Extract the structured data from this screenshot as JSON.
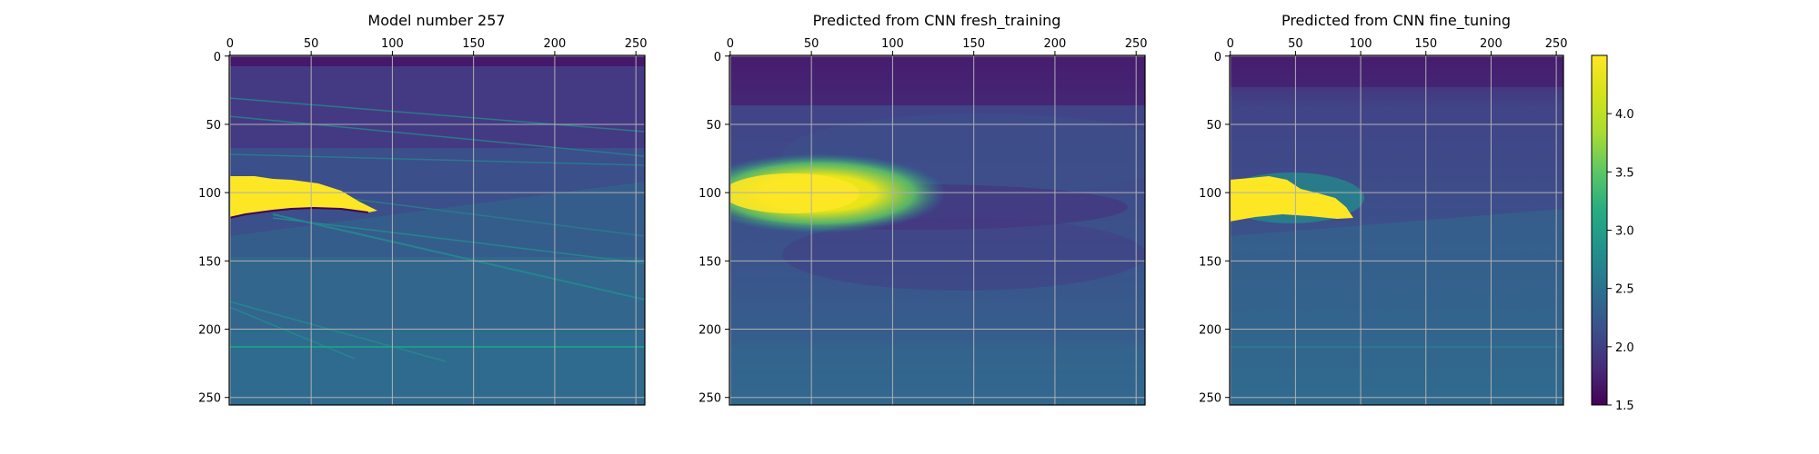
{
  "chart_data": [
    {
      "type": "heatmap",
      "title": "Model number 257",
      "xlabel": "",
      "ylabel": "",
      "xlim": [
        0,
        256
      ],
      "ylim": [
        256,
        0
      ],
      "x_ticks": [
        "0",
        "50",
        "100",
        "150",
        "200",
        "250"
      ],
      "y_ticks": [
        "0",
        "50",
        "100",
        "150",
        "200",
        "250"
      ],
      "x_axis_position": "top",
      "grid": true
    },
    {
      "type": "heatmap",
      "title": "Predicted from CNN fresh_training",
      "xlabel": "",
      "ylabel": "",
      "xlim": [
        0,
        256
      ],
      "ylim": [
        256,
        0
      ],
      "x_ticks": [
        "0",
        "50",
        "100",
        "150",
        "200",
        "250"
      ],
      "y_ticks": [
        "0",
        "50",
        "100",
        "150",
        "200",
        "250"
      ],
      "x_axis_position": "top",
      "grid": true
    },
    {
      "type": "heatmap",
      "title": "Predicted from CNN fine_tuning",
      "xlabel": "",
      "ylabel": "",
      "xlim": [
        0,
        256
      ],
      "ylim": [
        256,
        0
      ],
      "x_ticks": [
        "0",
        "50",
        "100",
        "150",
        "200",
        "250"
      ],
      "y_ticks": [
        "0",
        "50",
        "100",
        "150",
        "200",
        "250"
      ],
      "x_axis_position": "top",
      "grid": true
    }
  ],
  "colorbar": {
    "colormap": "viridis",
    "range": [
      1.5,
      4.5
    ],
    "ticks": [
      "1.5",
      "2.0",
      "2.5",
      "3.0",
      "3.5",
      "4.0"
    ]
  }
}
